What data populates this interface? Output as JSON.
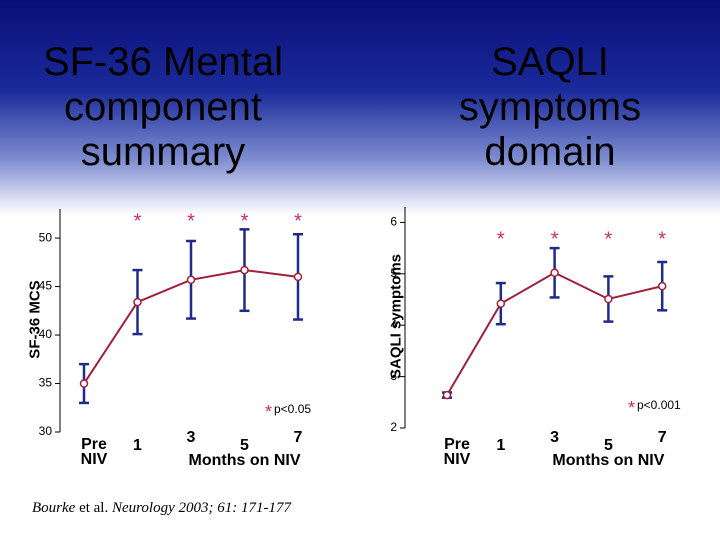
{
  "chart_data": [
    {
      "type": "line",
      "title": "SF-36 Mental component summary",
      "y_label": "SF-36 MCS",
      "x_label": "Months on NIV",
      "categories": [
        "Pre\nNIV",
        "1",
        "3",
        "5",
        "7"
      ],
      "series": [
        {
          "name": "SF-36 MCS",
          "color": "#a0203a",
          "error_color": "#1e2a8c",
          "values": [
            35.0,
            43.4,
            45.7,
            46.7,
            46.0
          ],
          "errors": [
            2.0,
            3.3,
            4.0,
            4.2,
            4.4
          ]
        }
      ],
      "ylim": [
        30,
        53
      ],
      "yticks": [
        30,
        35,
        40,
        45,
        50
      ],
      "significance_marker": "*",
      "significant": [
        1,
        2,
        3,
        4
      ],
      "significance_label": "p<0.05",
      "marker_color": "#c8305a"
    },
    {
      "type": "line",
      "title": "SAQLI symptoms domain",
      "y_label": "SAQLI symptoms",
      "x_label": "Months on NIV",
      "categories": [
        "Pre\nNIV",
        "1",
        "3",
        "5",
        "7"
      ],
      "series": [
        {
          "name": "SAQLI symptoms",
          "color": "#a0203a",
          "error_color": "#1e2a8c",
          "values": [
            2.64,
            4.42,
            5.02,
            4.51,
            4.76
          ],
          "errors": [
            0.05,
            0.4,
            0.48,
            0.44,
            0.47
          ]
        }
      ],
      "ylim": [
        2,
        6.3
      ],
      "yticks": [
        2,
        3,
        4,
        5,
        6
      ],
      "significance_marker": "*",
      "significant": [
        1,
        2,
        3,
        4
      ],
      "significance_label": "p<0.001",
      "marker_color": "#c8305a"
    }
  ],
  "footer": {
    "citation_author": "Bourke",
    "citation_etal": "et al.",
    "citation_source": "Neurology 2003; 61: 171-177"
  }
}
